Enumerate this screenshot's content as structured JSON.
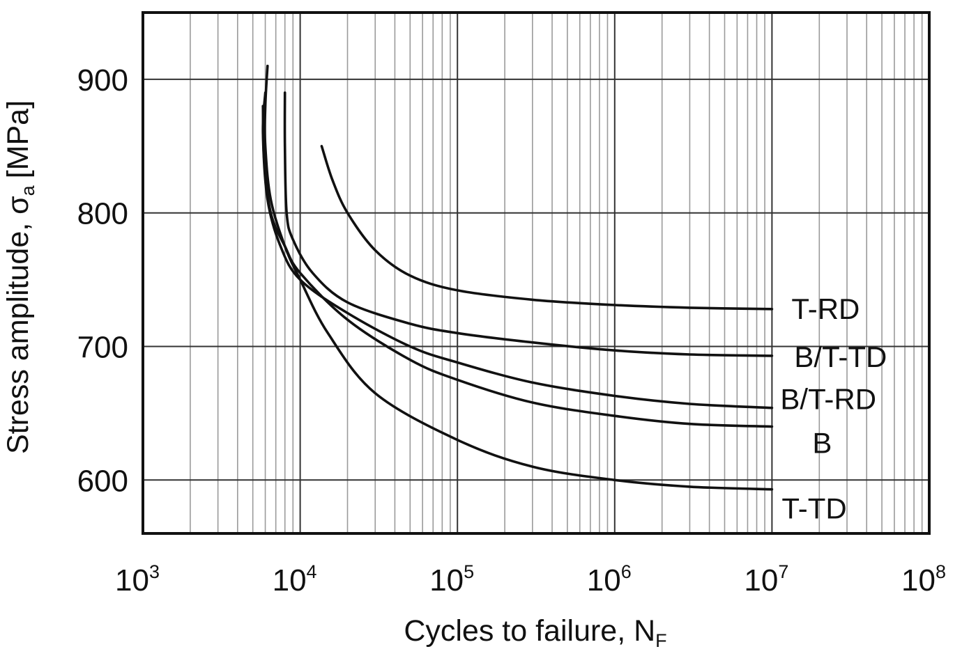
{
  "chart_data": {
    "type": "line",
    "title": "",
    "xlabel": "Cycles to failure, N",
    "xlabel_sub": "F",
    "ylabel": "Stress amplitude, σ",
    "ylabel_sub": "a",
    "ylabel_unit": "[MPa]",
    "x_scale": "log",
    "xlim": [
      1000,
      100000000
    ],
    "ylim": [
      560,
      950
    ],
    "grid": true,
    "x_ticks": [
      {
        "value": 1000,
        "base": "10",
        "exp": "3"
      },
      {
        "value": 10000,
        "base": "10",
        "exp": "4"
      },
      {
        "value": 100000,
        "base": "10",
        "exp": "5"
      },
      {
        "value": 1000000,
        "base": "10",
        "exp": "6"
      },
      {
        "value": 10000000,
        "base": "10",
        "exp": "7"
      },
      {
        "value": 100000000,
        "base": "10",
        "exp": "8"
      }
    ],
    "y_ticks": [
      600,
      700,
      800,
      900
    ],
    "series": [
      {
        "name": "T-RD",
        "points": [
          [
            13700,
            850
          ],
          [
            16000,
            825
          ],
          [
            20000,
            800
          ],
          [
            30000,
            772
          ],
          [
            50000,
            753
          ],
          [
            100000,
            742
          ],
          [
            300000,
            735
          ],
          [
            1000000,
            731
          ],
          [
            3000000,
            729
          ],
          [
            10000000,
            728
          ]
        ]
      },
      {
        "name": "B/T-TD",
        "points": [
          [
            8000,
            890
          ],
          [
            8000,
            850
          ],
          [
            8200,
            800
          ],
          [
            9000,
            780
          ],
          [
            12000,
            755
          ],
          [
            20000,
            733
          ],
          [
            50000,
            717
          ],
          [
            100000,
            710
          ],
          [
            300000,
            703
          ],
          [
            1000000,
            697
          ],
          [
            3000000,
            694
          ],
          [
            10000000,
            693
          ]
        ]
      },
      {
        "name": "B/T-RD",
        "points": [
          [
            6000,
            890
          ],
          [
            5800,
            860
          ],
          [
            6200,
            810
          ],
          [
            7500,
            775
          ],
          [
            10000,
            750
          ],
          [
            20000,
            725
          ],
          [
            50000,
            700
          ],
          [
            100000,
            688
          ],
          [
            300000,
            673
          ],
          [
            1000000,
            663
          ],
          [
            3000000,
            657
          ],
          [
            10000000,
            654
          ]
        ]
      },
      {
        "name": "B",
        "points": [
          [
            5800,
            880
          ],
          [
            5900,
            840
          ],
          [
            6500,
            800
          ],
          [
            8000,
            775
          ],
          [
            10000,
            755
          ],
          [
            20000,
            720
          ],
          [
            50000,
            690
          ],
          [
            100000,
            675
          ],
          [
            300000,
            658
          ],
          [
            1000000,
            648
          ],
          [
            3000000,
            642
          ],
          [
            10000000,
            640
          ]
        ]
      },
      {
        "name": "T-TD",
        "points": [
          [
            6200,
            910
          ],
          [
            6000,
            880
          ],
          [
            6000,
            850
          ],
          [
            6500,
            810
          ],
          [
            8000,
            775
          ],
          [
            10000,
            750
          ],
          [
            15000,
            710
          ],
          [
            30000,
            665
          ],
          [
            100000,
            630
          ],
          [
            300000,
            610
          ],
          [
            1000000,
            600
          ],
          [
            3000000,
            595
          ],
          [
            10000000,
            593
          ]
        ]
      }
    ]
  }
}
